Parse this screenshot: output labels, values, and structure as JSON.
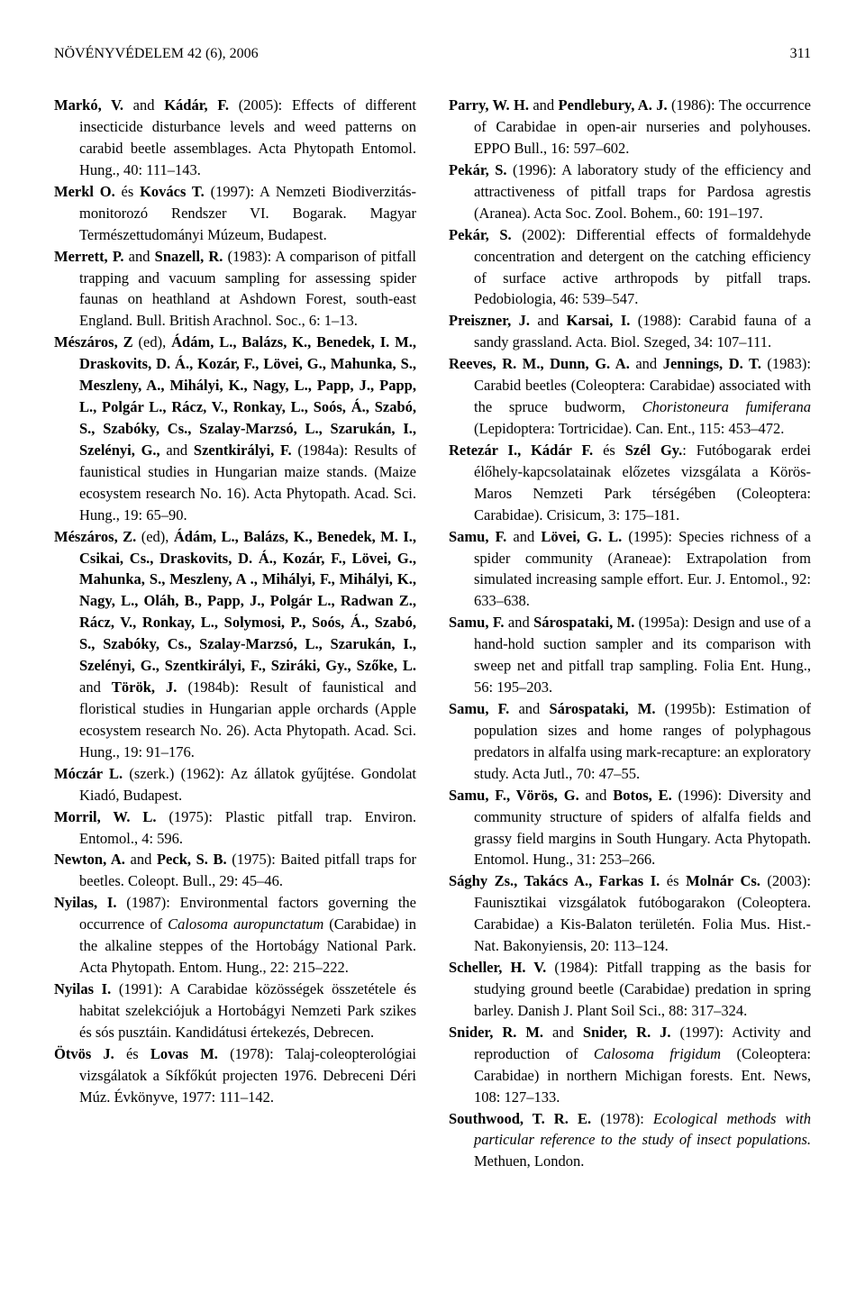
{
  "header": {
    "journal": "NÖVÉNYVÉDELEM 42 (6), 2006",
    "page": "311"
  },
  "left": [
    "<b>Markó, V.</b> and <b>Kádár, F.</b> (2005): Effects of different insecticide disturbance levels and weed patterns on carabid beetle assemblages. Acta Phytopath Entomol. Hung., 40: 111–143.",
    "<b>Merkl O.</b> és <b>Kovács T.</b> (1997): A Nemzeti Biodiverzitás-monitorozó Rendszer VI. Bogarak. Magyar Természettudományi Múzeum, Budapest.",
    "<b>Merrett, P.</b> and <b>Snazell, R.</b> (1983): A comparison of pitfall trapping and vacuum sampling for assessing spider faunas on heathland at Ashdown Forest, south-east England. Bull. British Arachnol. Soc., 6: 1–13.",
    "<b>Mészáros, Z</b> (ed), <b>Ádám, L., Balázs, K., Benedek, I. M., Draskovits, D. Á., Kozár, F., Lövei, G., Mahunka, S., Meszleny, A., Mihályi, K., Nagy, L., Papp, J., Papp, L., Polgár L., Rácz, V., Ronkay, L., Soós, Á., Szabó, S., Szabóky, Cs., Szalay-Marzsó, L., Szarukán, I., Szelényi, G.,</b> and <b>Szentkirályi, F.</b> (1984a): Results of faunistical studies in Hungarian maize stands. (Maize ecosystem research No. 16). Acta Phytopath. Acad. Sci. Hung., 19: 65–90.",
    "<b>Mészáros, Z.</b> (ed), <b>Ádám, L., Balázs, K., Benedek, M. I., Csikai, Cs., Draskovits, D. Á., Kozár, F., Lövei, G., Mahunka, S., Meszleny, A ., Mihályi, F., Mihályi, K., Nagy, L., Oláh, B., Papp, J., Polgár L., Radwan Z., Rácz, V., Ronkay, L., Solymosi, P., Soós, Á., Szabó, S., Szabóky, Cs., Szalay-Marzsó, L., Szarukán, I., Szelényi, G., Szentkirályi, F., Sziráki, Gy., Szőke, L.</b> and <b>Török, J.</b> (1984b): Result of faunistical and floristical studies in Hungarian apple orchards (Apple ecosystem research No. 26). Acta Phytopath. Acad. Sci. Hung., 19: 91–176.",
    "<b>Móczár L.</b> (szerk.) (1962): Az állatok gyűjtése. Gondolat Kiadó, Budapest.",
    "<b>Morril, W. L.</b> (1975): Plastic pitfall trap. Environ. Entomol., 4: 596.",
    "<b>Newton, A.</b> and <b>Peck, S. B.</b> (1975): Baited pitfall traps for beetles. Coleopt. Bull., 29: 45–46.",
    "<b>Nyilas, I.</b> (1987): Environmental factors governing the occurrence of <i>Calosoma auropunctatum</i> (Carabidae) in the alkaline steppes of the Hortobágy National Park. Acta Phytopath. Entom. Hung., 22: 215–222.",
    "<b>Nyilas I.</b> (1991): A Carabidae közösségek összetétele és habitat szelekciójuk a Hortobágyi Nemzeti Park szikes és sós pusztáin. Kandidátusi értekezés, Debrecen.",
    "<b>Ötvös J.</b> és <b>Lovas M.</b> (1978): Talaj-coleopterológiai vizsgálatok a Síkfőkút projecten 1976. Debreceni Déri Múz. Évkönyve, 1977: 111–142."
  ],
  "right": [
    "<b>Parry, W. H.</b> and <b>Pendlebury, A. J.</b> (1986): The occurrence of Carabidae in open-air nurseries and polyhouses. EPPO Bull., 16: 597–602.",
    "<b>Pekár, S.</b> (1996): A laboratory study of the efficiency and attractiveness of pitfall traps for Pardosa agrestis (Aranea). Acta Soc. Zool. Bohem., 60: 191–197.",
    "<b>Pekár, S.</b> (2002): Differential effects of formaldehyde concentration and detergent on the catching efficiency of surface active arthropods by pitfall traps. Pedobiologia, 46: 539–547.",
    "<b>Preiszner, J.</b> and <b>Karsai, I.</b> (1988): Carabid fauna of a sandy grassland. Acta. Biol. Szeged, 34: 107–111.",
    "<b>Reeves, R. M., Dunn, G. A.</b> and <b>Jennings, D. T.</b> (1983): Carabid beetles (Coleoptera: Carabidae) associated with the spruce budworm, <i>Choristoneura fumiferana</i> (Lepidoptera: Tortricidae). Can. Ent., 115: 453–472.",
    "<b>Retezár I., Kádár F.</b> és <b>Szél Gy.</b>: Futóbogarak erdei élőhely-kapcsolatainak előzetes vizsgálata a Körös-Maros Nemzeti Park térségében (Coleoptera: Carabidae). Crisicum, 3: 175–181.",
    "<b>Samu, F.</b> and <b>Lövei, G. L.</b> (1995): Species richness of a spider community (Araneae): Extrapolation from simulated increasing sample effort. Eur. J. Entomol., 92: 633–638.",
    "<b>Samu, F.</b> and <b>Sárospataki, M.</b> (1995a): Design and use of a hand-hold suction sampler and its comparison with sweep net and pitfall trap sampling. Folia Ent. Hung., 56: 195–203.",
    "<b>Samu, F.</b> and <b>Sárospataki, M.</b> (1995b): Estimation of population sizes and home ranges of polyphagous predators in alfalfa using mark-recapture: an exploratory study. Acta Jutl., 70: 47–55.",
    "<b>Samu, F., Vörös, G.</b> and <b>Botos, E.</b> (1996): Diversity and community structure of spiders of alfalfa fields and grassy field margins in South Hungary. Acta Phytopath. Entomol. Hung., 31: 253–266.",
    "<b>Sághy Zs., Takács A., Farkas I.</b> és <b>Molnár Cs.</b> (2003): Faunisztikai vizsgálatok futóbogarakon (Coleoptera. Carabidae) a Kis-Balaton területén. Folia Mus. Hist.-Nat. Bakonyiensis, 20: 113–124.",
    "<b>Scheller, H. V.</b> (1984): Pitfall trapping as the basis for studying ground beetle (Carabidae) predation in spring barley. Danish J. Plant Soil Sci., 88: 317–324.",
    "<b>Snider, R. M.</b> and <b>Snider, R. J.</b> (1997): Activity and reproduction of <i>Calosoma frigidum</i> (Coleoptera: Carabidae) in northern Michigan forests. Ent. News, 108: 127–133.",
    "<b>Southwood, T. R. E.</b> (1978): <i>Ecological methods with particular reference to the study of insect populations.</i> Methuen, London."
  ]
}
